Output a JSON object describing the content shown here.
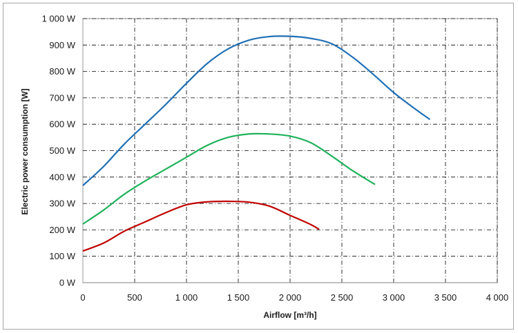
{
  "chart_data": {
    "type": "line",
    "xlabel": "Airflow [m³/h]",
    "ylabel": "Electric power consumption [W]",
    "xlim": [
      0,
      4000
    ],
    "ylim": [
      0,
      1000
    ],
    "x_ticks": [
      0,
      500,
      1000,
      1500,
      2000,
      2500,
      3000,
      3500,
      4000
    ],
    "x_tick_labels": [
      "0",
      "500",
      "1 000",
      "1 500",
      "2 000",
      "2 500",
      "3 000",
      "3 500",
      "4 000"
    ],
    "y_ticks": [
      0,
      100,
      200,
      300,
      400,
      500,
      600,
      700,
      800,
      900,
      1000
    ],
    "y_tick_labels": [
      "0 W",
      "100 W",
      "200 W",
      "300 W",
      "400 W",
      "500 W",
      "600 W",
      "700 W",
      "800 W",
      "900 W",
      "1 000 W"
    ],
    "grid": true,
    "legend": "none",
    "series": [
      {
        "color": "#1f6fb5",
        "x": [
          0,
          200,
          400,
          600,
          800,
          1000,
          1200,
          1400,
          1600,
          1800,
          2000,
          2200,
          2400,
          2600,
          2800,
          3000,
          3200,
          3350
        ],
        "y": [
          368,
          440,
          525,
          600,
          675,
          755,
          830,
          885,
          918,
          932,
          933,
          925,
          905,
          855,
          790,
          720,
          660,
          618
        ]
      },
      {
        "color": "#1fb25a",
        "x": [
          0,
          200,
          400,
          600,
          800,
          1000,
          1200,
          1400,
          1600,
          1800,
          2000,
          2200,
          2400,
          2600,
          2820
        ],
        "y": [
          222,
          275,
          335,
          385,
          430,
          475,
          520,
          550,
          563,
          563,
          555,
          530,
          480,
          425,
          372
        ]
      },
      {
        "color": "#c00000",
        "x": [
          0,
          200,
          400,
          600,
          800,
          1000,
          1200,
          1400,
          1600,
          1800,
          2000,
          2200,
          2280
        ],
        "y": [
          120,
          150,
          195,
          230,
          265,
          295,
          306,
          308,
          305,
          290,
          255,
          220,
          202
        ]
      }
    ]
  }
}
